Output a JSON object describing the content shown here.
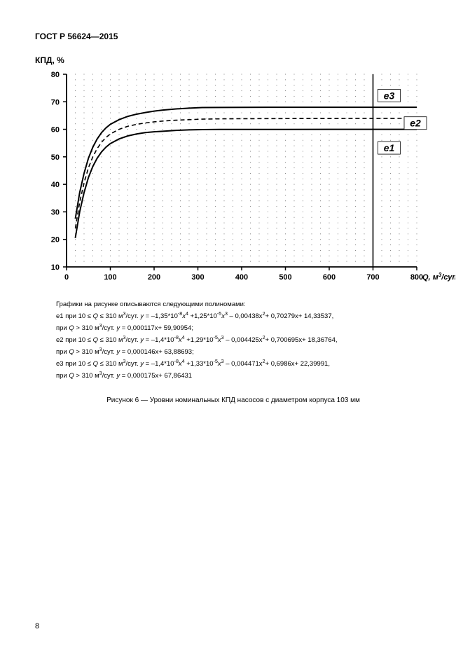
{
  "doc": {
    "header": "ГОСТ Р 56624—2015",
    "y_axis_title": "КПД, %",
    "page_number": "8",
    "caption": "Рисунок 6 — Уровни номинальных КПД насосов с диаметром корпуса 103 мм"
  },
  "chart": {
    "xlim": [
      0,
      800
    ],
    "ylim": [
      10,
      80
    ],
    "xtick_step": 100,
    "ytick_step": 10,
    "x_minor_step": 20,
    "y_minor_step": 2,
    "x_label": "Q, м",
    "x_label_sup": "3",
    "x_label_suffix": "/сут",
    "background_color": "#ffffff",
    "axis_color": "#000000",
    "axis_width": 1.8,
    "grid_dot_color": "#808080",
    "vline_at": 700,
    "series": [
      {
        "name": "e1",
        "label": "e1",
        "stroke": "#000000",
        "width": 2.0,
        "dash": "none",
        "label_x": 740,
        "label_y": 53,
        "points": [
          [
            20,
            20.5
          ],
          [
            30,
            30
          ],
          [
            40,
            37
          ],
          [
            50,
            42.5
          ],
          [
            60,
            46.5
          ],
          [
            70,
            49.5
          ],
          [
            80,
            51.8
          ],
          [
            90,
            53.5
          ],
          [
            100,
            54.8
          ],
          [
            120,
            56.5
          ],
          [
            140,
            57.6
          ],
          [
            160,
            58.3
          ],
          [
            180,
            58.8
          ],
          [
            200,
            59.1
          ],
          [
            220,
            59.3
          ],
          [
            250,
            59.6
          ],
          [
            280,
            59.8
          ],
          [
            310,
            59.9
          ],
          [
            350,
            59.95
          ],
          [
            400,
            59.96
          ],
          [
            500,
            59.97
          ],
          [
            600,
            59.98
          ],
          [
            700,
            59.99
          ],
          [
            800,
            60.0
          ]
        ]
      },
      {
        "name": "e2",
        "label": "e2",
        "stroke": "#000000",
        "width": 1.6,
        "dash": "6 4",
        "label_x": 800,
        "label_y": 62,
        "points": [
          [
            20,
            24
          ],
          [
            30,
            33.5
          ],
          [
            40,
            40.5
          ],
          [
            50,
            46
          ],
          [
            60,
            50
          ],
          [
            70,
            53
          ],
          [
            80,
            55.3
          ],
          [
            90,
            57
          ],
          [
            100,
            58.3
          ],
          [
            120,
            60
          ],
          [
            140,
            61.1
          ],
          [
            160,
            61.8
          ],
          [
            180,
            62.3
          ],
          [
            200,
            62.7
          ],
          [
            220,
            63
          ],
          [
            250,
            63.3
          ],
          [
            280,
            63.5
          ],
          [
            310,
            63.7
          ],
          [
            350,
            63.8
          ],
          [
            400,
            63.85
          ],
          [
            500,
            63.9
          ],
          [
            600,
            63.92
          ],
          [
            700,
            63.95
          ],
          [
            800,
            63.97
          ]
        ]
      },
      {
        "name": "e3",
        "label": "e3",
        "stroke": "#000000",
        "width": 2.0,
        "dash": "none",
        "label_x": 740,
        "label_y": 72,
        "points": [
          [
            20,
            27.5
          ],
          [
            30,
            37
          ],
          [
            40,
            44
          ],
          [
            50,
            49.5
          ],
          [
            60,
            53.5
          ],
          [
            70,
            56.5
          ],
          [
            80,
            58.8
          ],
          [
            90,
            60.5
          ],
          [
            100,
            61.8
          ],
          [
            120,
            63.5
          ],
          [
            140,
            64.7
          ],
          [
            160,
            65.5
          ],
          [
            180,
            66.1
          ],
          [
            200,
            66.6
          ],
          [
            220,
            67
          ],
          [
            250,
            67.4
          ],
          [
            280,
            67.7
          ],
          [
            310,
            67.9
          ],
          [
            350,
            67.95
          ],
          [
            400,
            67.98
          ],
          [
            500,
            68.0
          ],
          [
            600,
            68.0
          ],
          [
            700,
            68.0
          ],
          [
            800,
            68.0
          ]
        ]
      }
    ]
  },
  "desc": {
    "intro": "Графики на рисунке описываются следующими полиномами:",
    "lines": [
      "e1 при 10 ≤ Q ≤ 310 м³/сут.  y = –1,35*10⁻⁸x⁴ +1,25*10⁻⁵x³ – 0,00438x²+ 0,70279x+ 14,33537,",
      "при Q > 310 м³/сут.  y = 0,000117x+ 59,90954;",
      "e2 при 10 ≤ Q ≤ 310 м³/сут.  y = –1,4*10⁻⁸x⁴ +1,29*10⁻⁵x³ – 0,004425x²+ 0,700695x+ 18,36764,",
      "при Q > 310 м³/сут.  y = 0,000146x+ 63,88693;",
      "e3 при 10 ≤ Q ≤ 310 м³/сут.  y = –1,4*10⁻⁸x⁴ +1,33*10⁻⁵x³ – 0,004471x²+ 0,6986x+ 22,39991,",
      "при  Q > 310 м³/сут.  y = 0,000175x+ 67,86431"
    ]
  }
}
